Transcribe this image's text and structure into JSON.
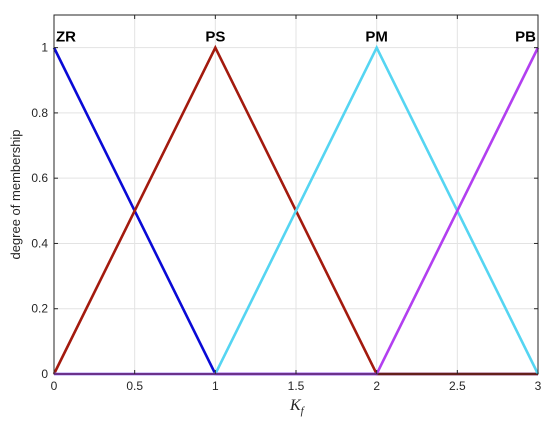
{
  "chart_data": {
    "type": "line",
    "xlabel": {
      "main": "K",
      "sub": "f"
    },
    "ylabel": "degree of membership",
    "xlim": [
      0,
      3
    ],
    "ylim": [
      0,
      1.1
    ],
    "xticks": [
      0,
      0.5,
      1,
      1.5,
      2,
      2.5,
      3
    ],
    "xtick_labels": [
      "0",
      "0.5",
      "1",
      "1.5",
      "2",
      "2.5",
      "3"
    ],
    "yticks": [
      0,
      0.2,
      0.4,
      0.6,
      0.8,
      1
    ],
    "ytick_labels": [
      "0",
      "0.2",
      "0.4",
      "0.6",
      "0.8",
      "1"
    ],
    "grid": true,
    "series": [
      {
        "name": "ZR",
        "color": "#0a0ad6",
        "x": [
          0,
          1,
          3
        ],
        "y": [
          1,
          0,
          0
        ]
      },
      {
        "name": "PS",
        "color": "#a31a0e",
        "x": [
          0,
          1,
          2,
          3
        ],
        "y": [
          0,
          1,
          0,
          0
        ]
      },
      {
        "name": "PM",
        "color": "#55d5f2",
        "x": [
          0,
          1,
          2,
          3
        ],
        "y": [
          0,
          0,
          1,
          0
        ]
      },
      {
        "name": "PB",
        "color": "#b23ff0",
        "x": [
          0,
          2,
          3
        ],
        "y": [
          0,
          0,
          1
        ]
      }
    ]
  }
}
